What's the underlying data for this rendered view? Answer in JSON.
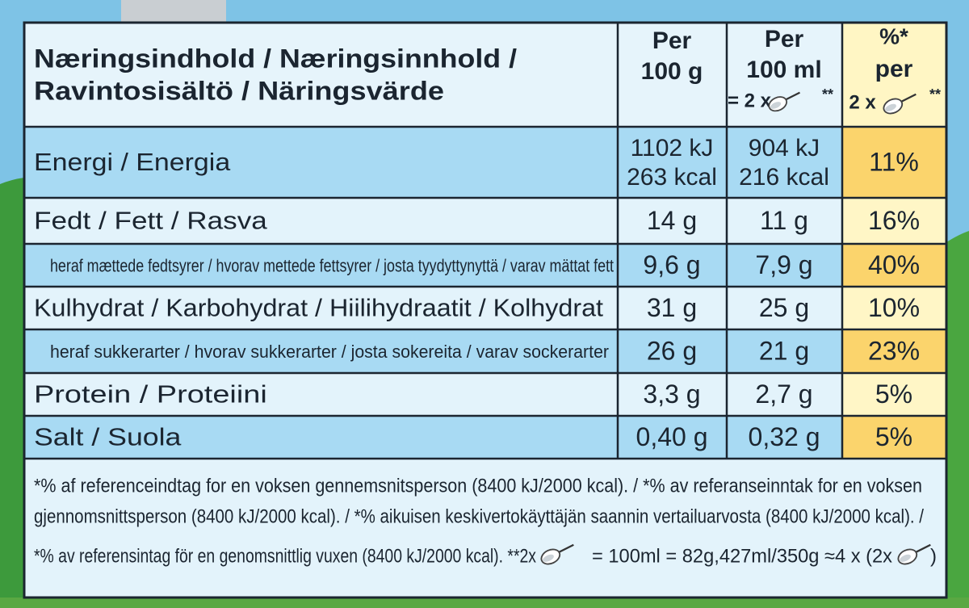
{
  "header": {
    "title": [
      "Næringsindhold / Næringsinnhold /",
      "Ravintosisältö / Näringsvärde"
    ],
    "per_100g": [
      "Per",
      "100 g"
    ],
    "per_100ml": [
      "Per",
      "100 ml",
      "= 2 x",
      "**"
    ],
    "ri": [
      "%*",
      "per",
      "2 x",
      "**"
    ]
  },
  "rows": [
    {
      "label": "Energi / Energia",
      "per_100g": [
        "1102 kJ",
        "263 kcal"
      ],
      "per_100ml": [
        "904 kJ",
        "216 kcal"
      ],
      "ri": "11%"
    },
    {
      "label": "Fedt / Fett / Rasva",
      "per_100g": "14 g",
      "per_100ml": "11 g",
      "ri": "16%",
      "sub": {
        "label": "heraf mættede fedtsyrer / hvorav mettede fettsyrer / josta tyydyttynyttä / varav mättat fett",
        "per_100g": "9,6 g",
        "per_100ml": "7,9 g",
        "ri": "40%"
      }
    },
    {
      "label": "Kulhydrat / Karbohydrat / Hiilihydraatit / Kolhydrat",
      "per_100g": "31 g",
      "per_100ml": "25 g",
      "ri": "10%",
      "sub": {
        "label": "heraf sukkerarter / hvorav sukkerarter / josta sokereita / varav sockerarter",
        "per_100g": "26 g",
        "per_100ml": "21 g",
        "ri": "23%"
      }
    },
    {
      "label": "Protein / Proteiini",
      "per_100g": "3,3 g",
      "per_100ml": "2,7 g",
      "ri": "5%"
    },
    {
      "label": "Salt / Suola",
      "per_100g": "0,40 g",
      "per_100ml": "0,32 g",
      "ri": "5%"
    }
  ],
  "footnote": [
    "*% af referenceindtag for en voksen gennemsnitsperson (8400 kJ/2000 kcal). / *% av referanseinntak for en voksen",
    "gjennomsnittsperson (8400 kJ/2000 kcal). / *% aikuisen keskivertokäyttäjän saannin vertailuarvosta (8400 kJ/2000 kcal). /",
    [
      "*% av referensintag för en genomsnittlig vuxen (8400 kJ/2000 kcal).  **2x",
      "= 100ml = 82g,427ml/350g ≈4 x (2x",
      ")"
    ]
  ]
}
